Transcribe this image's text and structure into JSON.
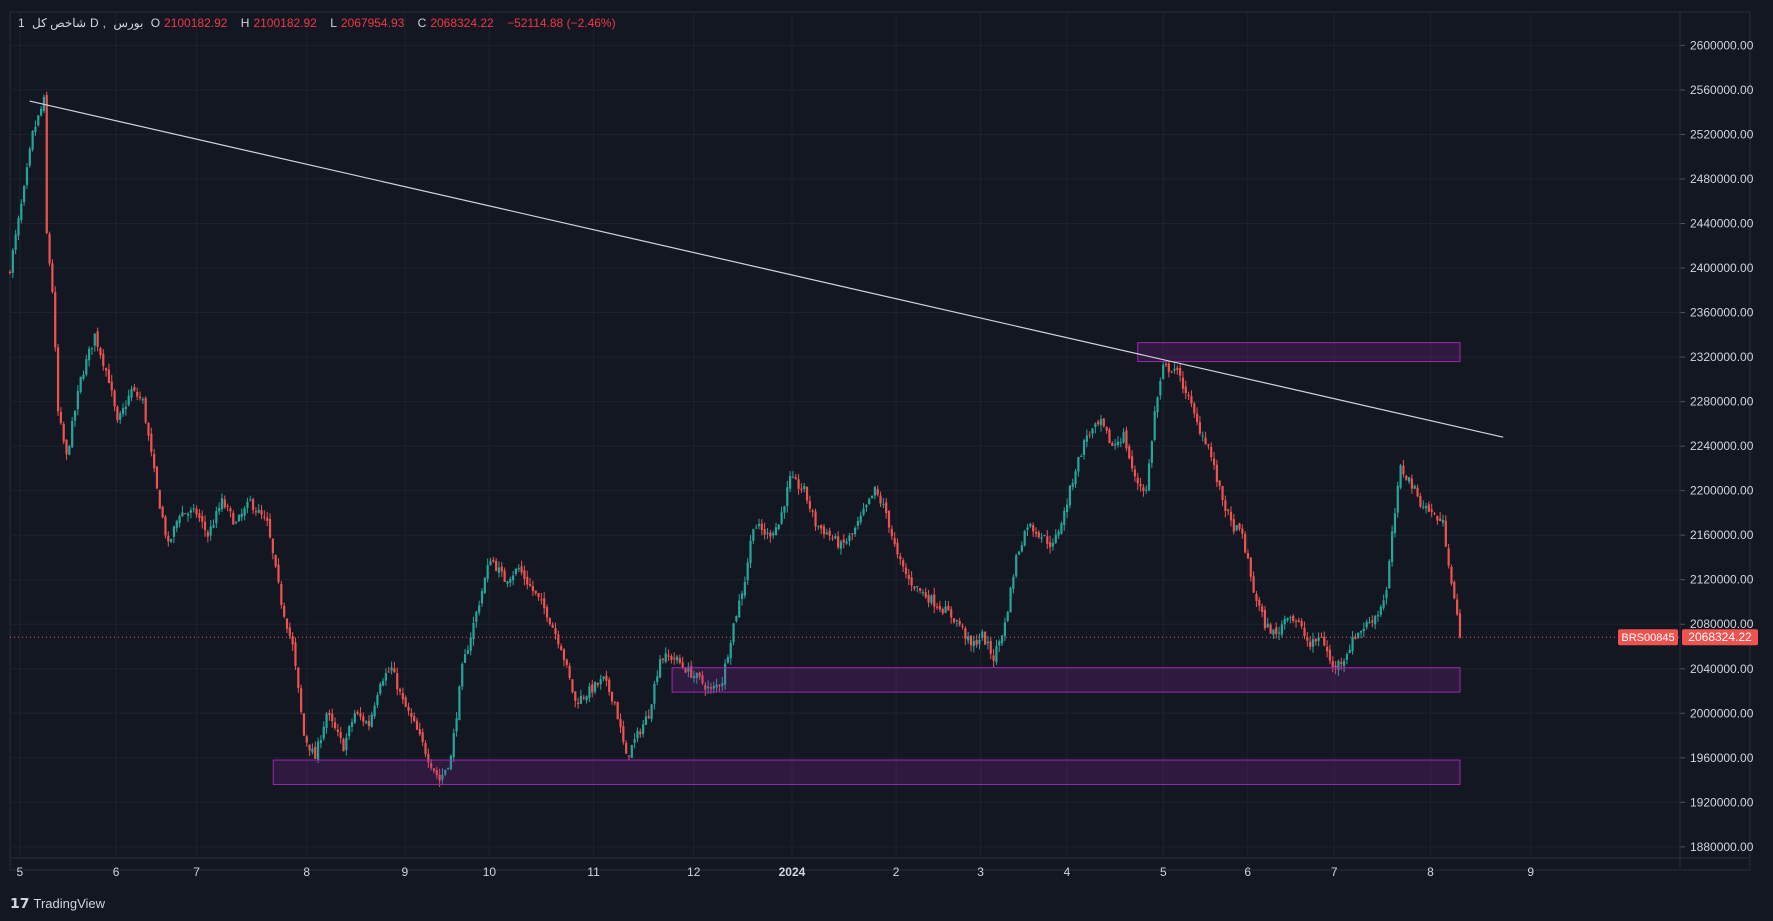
{
  "header": {
    "symbol": "شاخص کل",
    "interval": "1",
    "timeframe": "D",
    "exchange": "بورس",
    "o_label": "O",
    "o_value": "2100182.92",
    "h_label": "H",
    "h_value": "2100182.92",
    "l_label": "L",
    "l_value": "2067954.93",
    "c_label": "C",
    "c_value": "2068324.22",
    "change": "−52114.88 (−2.46%)"
  },
  "brand": "TradingView",
  "colors": {
    "bg": "#131722",
    "grid": "#1e222d",
    "up": "#26a69a",
    "down": "#ef5350",
    "zone": "#9c27b0",
    "trend": "#d1d4dc",
    "axis": "#d1d4dc"
  },
  "chart_data": {
    "type": "candlestick",
    "title": "شاخص کل, 1D, بورس",
    "ylim": [
      1870000,
      2630000
    ],
    "y_ticks": [
      "2600000.00",
      "2560000.00",
      "2520000.00",
      "2480000.00",
      "2440000.00",
      "2400000.00",
      "2360000.00",
      "2320000.00",
      "2280000.00",
      "2240000.00",
      "2200000.00",
      "2160000.00",
      "2120000.00",
      "2080000.00",
      "2040000.00",
      "2000000.00",
      "1960000.00",
      "1920000.00",
      "1880000.00"
    ],
    "x_ticks": [
      {
        "label": "5",
        "t": 5
      },
      {
        "label": "6",
        "t": 54
      },
      {
        "label": "7",
        "t": 95
      },
      {
        "label": "8",
        "t": 151
      },
      {
        "label": "9",
        "t": 201
      },
      {
        "label": "10",
        "t": 244
      },
      {
        "label": "11",
        "t": 297
      },
      {
        "label": "12",
        "t": 348
      },
      {
        "label": "2024",
        "t": 398
      },
      {
        "label": "2",
        "t": 451
      },
      {
        "label": "3",
        "t": 494
      },
      {
        "label": "4",
        "t": 538
      },
      {
        "label": "5",
        "t": 587
      },
      {
        "label": "6",
        "t": 630
      },
      {
        "label": "7",
        "t": 674
      },
      {
        "label": "8",
        "t": 723
      },
      {
        "label": "9",
        "t": 774
      }
    ],
    "price_label": {
      "symbol": "BRS00845",
      "value": "2068324.22",
      "price": 2068324.22
    },
    "trendline": {
      "start": [
        10,
        2550000
      ],
      "end": [
        760,
        2248000
      ]
    },
    "zones": [
      {
        "t0": 574,
        "t1": 738,
        "low": 2316000,
        "high": 2333000
      },
      {
        "t0": 337,
        "t1": 738,
        "low": 2019000,
        "high": 2041000
      },
      {
        "t0": 134,
        "t1": 738,
        "low": 1936000,
        "high": 1958000
      }
    ],
    "last_close": 2068324.22
  }
}
